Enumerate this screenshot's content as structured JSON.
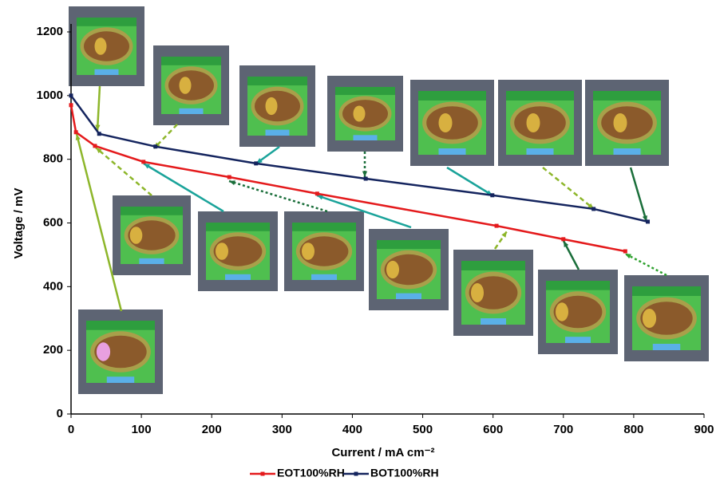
{
  "chart_data": {
    "type": "line",
    "x_label": "Current / mA cm⁻²",
    "y_label": "Voltage / mV",
    "xlim": [
      0,
      900
    ],
    "xticks": [
      0,
      100,
      200,
      300,
      400,
      500,
      600,
      700,
      800,
      900
    ],
    "ylim": [
      0,
      1200
    ],
    "yticks": [
      0,
      200,
      400,
      600,
      800,
      1000,
      1200
    ],
    "grid": false,
    "legend": "bottom",
    "series": [
      {
        "name": "EOT100%RH",
        "color": "#e41a1c",
        "x": [
          0,
          7,
          34,
          103,
          225,
          350,
          605,
          700,
          788
        ],
        "values": [
          970,
          885,
          842,
          792,
          744,
          692,
          591,
          549,
          511
        ]
      },
      {
        "name": "BOT100%RH",
        "color": "#14245e",
        "x": [
          0,
          40,
          120,
          263,
          419,
          599,
          743,
          820
        ],
        "values": [
          1000,
          880,
          840,
          787,
          739,
          687,
          644,
          604
        ]
      }
    ]
  }
}
